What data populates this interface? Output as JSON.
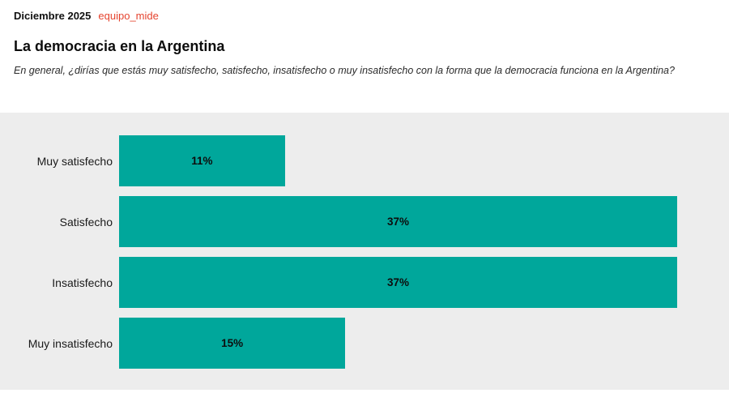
{
  "header": {
    "date": "Diciembre 2025",
    "source": "equipo_mide",
    "title": "La democracia en la Argentina",
    "subtitle": "En general, ¿dirías que estás muy satisfecho, satisfecho, insatisfecho o muy insatisfecho con la forma que la democracia funciona en la Argentina?"
  },
  "colors": {
    "bar_fill": "#00a79b",
    "source_red": "#e5432e",
    "chart_background": "#ededed",
    "text": "#111111"
  },
  "chart_data": {
    "type": "bar",
    "orientation": "horizontal",
    "title": "La democracia en la Argentina",
    "xlabel": "",
    "ylabel": "",
    "categories": [
      "Muy satisfecho",
      "Satisfecho",
      "Insatisfecho",
      "Muy insatisfecho"
    ],
    "values": [
      11,
      37,
      37,
      15
    ],
    "value_labels": [
      "11%",
      "37%",
      "37%",
      "15%"
    ],
    "xlim": [
      0,
      37
    ],
    "grid": false,
    "legend": "none",
    "bar_color": "#00a79b",
    "value_label_position": "center"
  }
}
